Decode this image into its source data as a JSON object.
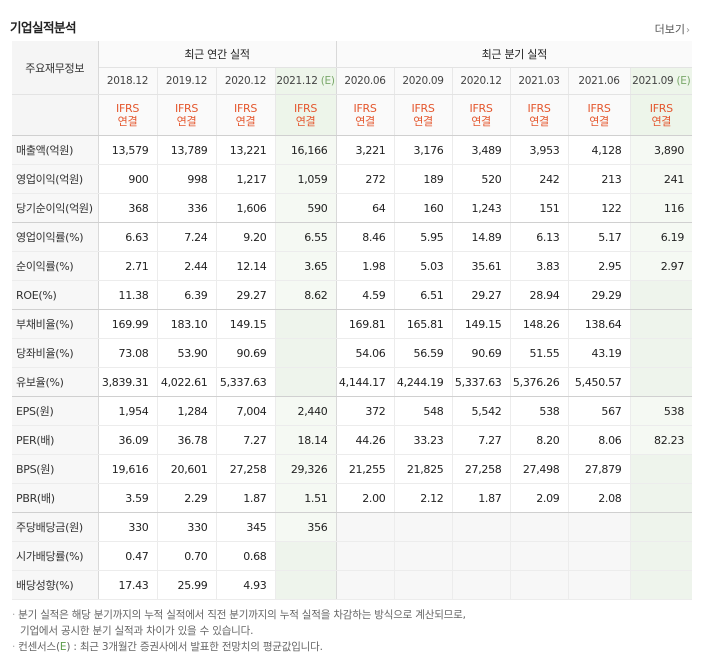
{
  "title": "기업실적분석",
  "more_label": "더보기",
  "header": {
    "row_label": "주요재무정보",
    "group_annual": "최근 연간 실적",
    "group_quarter": "최근 분기 실적",
    "annual_periods": [
      "2018.12",
      "2019.12",
      "2020.12",
      "2021.12"
    ],
    "annual_est_flags": [
      false,
      false,
      false,
      true
    ],
    "quarter_periods": [
      "2020.06",
      "2020.09",
      "2020.12",
      "2021.03",
      "2021.06",
      "2021.09"
    ],
    "quarter_est_flags": [
      false,
      false,
      false,
      false,
      false,
      true
    ],
    "est_mark": "(E)",
    "ifrs_line1": "IFRS",
    "ifrs_line2": "연결"
  },
  "rows": [
    {
      "label": "매출액(억원)",
      "annual": [
        "13,579",
        "13,789",
        "13,221",
        "16,166"
      ],
      "quarter": [
        "3,221",
        "3,176",
        "3,489",
        "3,953",
        "4,128",
        "3,890"
      ]
    },
    {
      "label": "영업이익(억원)",
      "annual": [
        "900",
        "998",
        "1,217",
        "1,059"
      ],
      "quarter": [
        "272",
        "189",
        "520",
        "242",
        "213",
        "241"
      ]
    },
    {
      "label": "당기순이익(억원)",
      "annual": [
        "368",
        "336",
        "1,606",
        "590"
      ],
      "quarter": [
        "64",
        "160",
        "1,243",
        "151",
        "122",
        "116"
      ]
    },
    {
      "label": "영업이익률(%)",
      "annual": [
        "6.63",
        "7.24",
        "9.20",
        "6.55"
      ],
      "quarter": [
        "8.46",
        "5.95",
        "14.89",
        "6.13",
        "5.17",
        "6.19"
      ]
    },
    {
      "label": "순이익률(%)",
      "annual": [
        "2.71",
        "2.44",
        "12.14",
        "3.65"
      ],
      "quarter": [
        "1.98",
        "5.03",
        "35.61",
        "3.83",
        "2.95",
        "2.97"
      ]
    },
    {
      "label": "ROE(%)",
      "annual": [
        "11.38",
        "6.39",
        "29.27",
        "8.62"
      ],
      "quarter": [
        "4.59",
        "6.51",
        "29.27",
        "28.94",
        "29.29",
        ""
      ]
    },
    {
      "label": "부채비율(%)",
      "annual": [
        "169.99",
        "183.10",
        "149.15",
        ""
      ],
      "quarter": [
        "169.81",
        "165.81",
        "149.15",
        "148.26",
        "138.64",
        ""
      ]
    },
    {
      "label": "당좌비율(%)",
      "annual": [
        "73.08",
        "53.90",
        "90.69",
        ""
      ],
      "quarter": [
        "54.06",
        "56.59",
        "90.69",
        "51.55",
        "43.19",
        ""
      ]
    },
    {
      "label": "유보율(%)",
      "annual": [
        "3,839.31",
        "4,022.61",
        "5,337.63",
        ""
      ],
      "quarter": [
        "4,144.17",
        "4,244.19",
        "5,337.63",
        "5,376.26",
        "5,450.57",
        ""
      ]
    },
    {
      "label": "EPS(원)",
      "annual": [
        "1,954",
        "1,284",
        "7,004",
        "2,440"
      ],
      "quarter": [
        "372",
        "548",
        "5,542",
        "538",
        "567",
        "538"
      ]
    },
    {
      "label": "PER(배)",
      "annual": [
        "36.09",
        "36.78",
        "7.27",
        "18.14"
      ],
      "quarter": [
        "44.26",
        "33.23",
        "7.27",
        "8.20",
        "8.06",
        "82.23"
      ]
    },
    {
      "label": "BPS(원)",
      "annual": [
        "19,616",
        "20,601",
        "27,258",
        "29,326"
      ],
      "quarter": [
        "21,255",
        "21,825",
        "27,258",
        "27,498",
        "27,879",
        ""
      ]
    },
    {
      "label": "PBR(배)",
      "annual": [
        "3.59",
        "2.29",
        "1.87",
        "1.51"
      ],
      "quarter": [
        "2.00",
        "2.12",
        "1.87",
        "2.09",
        "2.08",
        ""
      ]
    },
    {
      "label": "주당배당금(원)",
      "annual": [
        "330",
        "330",
        "345",
        "356"
      ],
      "quarter": [
        "",
        "",
        "",
        "",
        "",
        ""
      ]
    },
    {
      "label": "시가배당률(%)",
      "annual": [
        "0.47",
        "0.70",
        "0.68",
        ""
      ],
      "quarter": [
        "",
        "",
        "",
        "",
        "",
        ""
      ]
    },
    {
      "label": "배당성향(%)",
      "annual": [
        "17.43",
        "25.99",
        "4.93",
        ""
      ],
      "quarter": [
        "",
        "",
        "",
        "",
        "",
        ""
      ]
    }
  ],
  "separator_after_rows": [
    2,
    5,
    8,
    12
  ],
  "notes": {
    "note1_line1": "분기 실적은 해당 분기까지의 누적 실적에서 직전 분기까지의 누적 실적을 차감하는 방식으로 계산되므로,",
    "note1_line2": "기업에서 공시한 분기 실적과 차이가 있을 수 있습니다.",
    "note2_pre": "컨센서스(",
    "note2_mark": "E",
    "note2_post": ") : 최근 3개월간 증권사에서 발표한 전망치의 평균값입니다."
  }
}
